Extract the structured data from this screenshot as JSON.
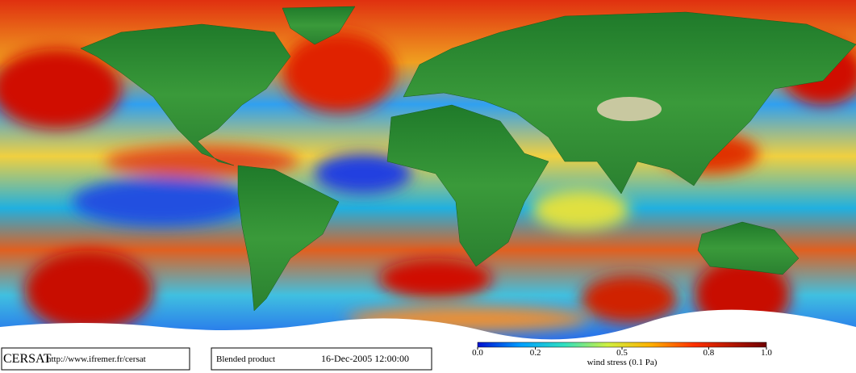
{
  "footer": {
    "logo": "CERSAT",
    "url": "http://www.ifremer.fr/cersat",
    "product": "Blended product",
    "date": "16-Dec-2005 12:00:00"
  },
  "colorbar": {
    "ticks": [
      {
        "value": 0,
        "label": "0.0"
      },
      0.2,
      0.5,
      0.8,
      {
        "value": 1,
        "label": "1.0"
      }
    ],
    "range": [
      0,
      1
    ],
    "label": "wind stress (0.1 Pa)"
  }
}
